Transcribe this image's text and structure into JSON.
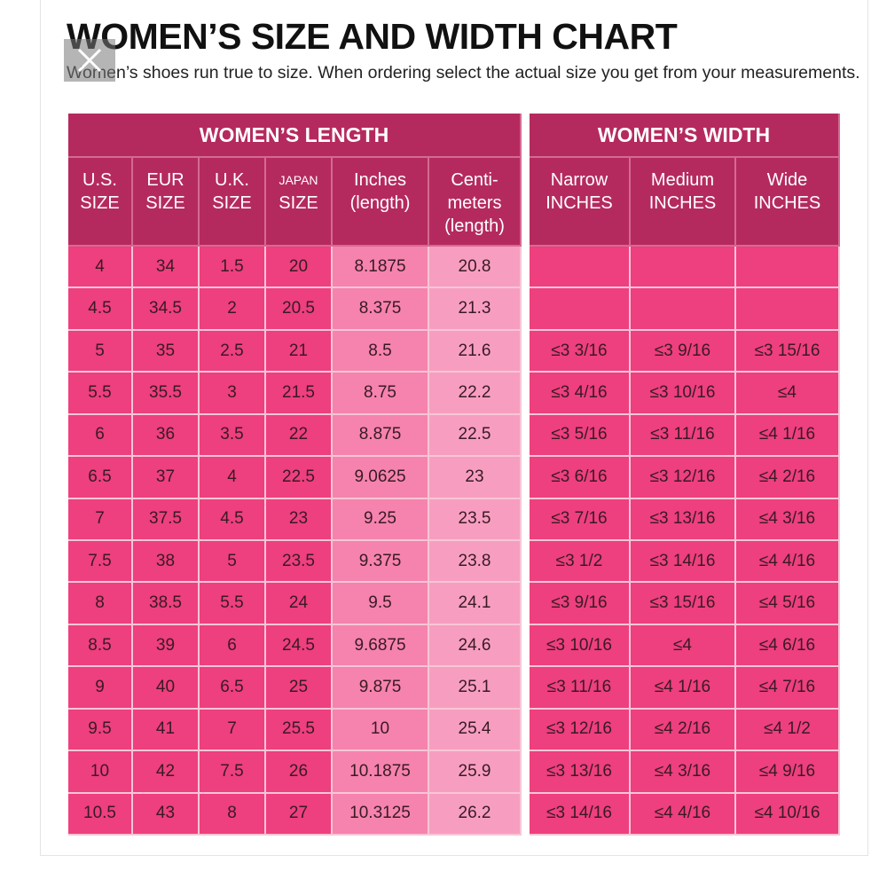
{
  "header": {
    "title": "WOMEN’S SIZE AND WIDTH CHART",
    "subtitle": "Women’s shoes run true to size.  When ordering select the actual size you get from your measurements."
  },
  "table": {
    "groups": [
      "WOMEN’S LENGTH",
      "WOMEN’S WIDTH"
    ],
    "columns": [
      [
        "U.S.",
        "SIZE"
      ],
      [
        "EUR",
        "SIZE"
      ],
      [
        "U.K.",
        "SIZE"
      ],
      [
        "JAPAN",
        "SIZE"
      ],
      [
        "Inches",
        "(length)"
      ],
      [
        "Centi-",
        "meters",
        "(length)"
      ],
      [
        "Narrow",
        "INCHES"
      ],
      [
        "Medium",
        "INCHES"
      ],
      [
        "Wide",
        "INCHES"
      ]
    ],
    "rows": [
      [
        "4",
        "34",
        "1.5",
        "20",
        "8.1875",
        "20.8"
      ],
      [
        "4.5",
        "34.5",
        "2",
        "20.5",
        "8.375",
        "21.3"
      ],
      [
        "5",
        "35",
        "2.5",
        "21",
        "8.5",
        "21.6",
        "≤3 3/16",
        "≤3 9/16",
        "≤3 15/16"
      ],
      [
        "5.5",
        "35.5",
        "3",
        "21.5",
        "8.75",
        "22.2",
        "≤3 4/16",
        "≤3 10/16",
        "≤4"
      ],
      [
        "6",
        "36",
        "3.5",
        "22",
        "8.875",
        "22.5",
        "≤3 5/16",
        "≤3 11/16",
        "≤4 1/16"
      ],
      [
        "6.5",
        "37",
        "4",
        "22.5",
        "9.0625",
        "23",
        "≤3 6/16",
        "≤3 12/16",
        "≤4 2/16"
      ],
      [
        "7",
        "37.5",
        "4.5",
        "23",
        "9.25",
        "23.5",
        "≤3 7/16",
        "≤3 13/16",
        "≤4 3/16"
      ],
      [
        "7.5",
        "38",
        "5",
        "23.5",
        "9.375",
        "23.8",
        "≤3 1/2",
        "≤3 14/16",
        "≤4 4/16"
      ],
      [
        "8",
        "38.5",
        "5.5",
        "24",
        "9.5",
        "24.1",
        "≤3 9/16",
        "≤3 15/16",
        "≤4 5/16"
      ],
      [
        "8.5",
        "39",
        "6",
        "24.5",
        "9.6875",
        "24.6",
        "≤3 10/16",
        "≤4",
        "≤4 6/16"
      ],
      [
        "9",
        "40",
        "6.5",
        "25",
        "9.875",
        "25.1",
        "≤3 11/16",
        "≤4 1/16",
        "≤4 7/16"
      ],
      [
        "9.5",
        "41",
        "7",
        "25.5",
        "10",
        "25.4",
        "≤3 12/16",
        "≤4 2/16",
        "≤4 1/2"
      ],
      [
        "10",
        "42",
        "7.5",
        "26",
        "10.1875",
        "25.9",
        "≤3 13/16",
        "≤4 3/16",
        "≤4 9/16"
      ],
      [
        "10.5",
        "43",
        "8",
        "27",
        "10.3125",
        "26.2",
        "≤3 14/16",
        "≤4 4/16",
        "≤4 10/16"
      ]
    ]
  }
}
